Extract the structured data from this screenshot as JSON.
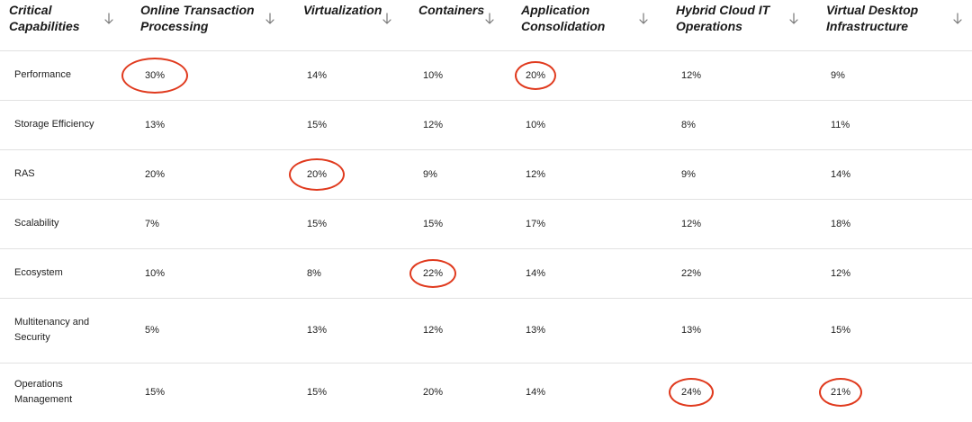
{
  "header": {
    "columns": [
      {
        "label": "Critical\nCapabilities"
      },
      {
        "label": "Online Transaction\nProcessing"
      },
      {
        "label": "Virtualization"
      },
      {
        "label": "Containers"
      },
      {
        "label": "Application\nConsolidation"
      },
      {
        "label": "Hybrid Cloud IT\nOperations"
      },
      {
        "label": "Virtual Desktop\nInfrastructure"
      }
    ]
  },
  "rows": [
    {
      "label": "Performance",
      "values": [
        "30%",
        "14%",
        "10%",
        "20%",
        "12%",
        "9%"
      ],
      "circled": [
        true,
        false,
        false,
        true,
        false,
        false
      ]
    },
    {
      "label": "Storage Efficiency",
      "values": [
        "13%",
        "15%",
        "12%",
        "10%",
        "8%",
        "11%"
      ],
      "circled": [
        false,
        false,
        false,
        false,
        false,
        false
      ]
    },
    {
      "label": "RAS",
      "values": [
        "20%",
        "20%",
        "9%",
        "12%",
        "9%",
        "14%"
      ],
      "circled": [
        false,
        true,
        false,
        false,
        false,
        false
      ]
    },
    {
      "label": "Scalability",
      "values": [
        "7%",
        "15%",
        "15%",
        "17%",
        "12%",
        "18%"
      ],
      "circled": [
        false,
        false,
        false,
        false,
        false,
        false
      ]
    },
    {
      "label": "Ecosystem",
      "values": [
        "10%",
        "8%",
        "22%",
        "14%",
        "22%",
        "12%"
      ],
      "circled": [
        false,
        false,
        true,
        false,
        false,
        false
      ]
    },
    {
      "label": "Multitenancy and\nSecurity",
      "values": [
        "5%",
        "13%",
        "12%",
        "13%",
        "13%",
        "15%"
      ],
      "circled": [
        false,
        false,
        false,
        false,
        false,
        false
      ]
    },
    {
      "label": "Operations\nManagement",
      "values": [
        "15%",
        "15%",
        "20%",
        "14%",
        "24%",
        "21%"
      ],
      "circled": [
        false,
        false,
        false,
        false,
        true,
        true
      ]
    }
  ],
  "colors": {
    "highlight": "#e03a1e",
    "text": "#222222",
    "divider": "#e1e1e1",
    "icon": "#777777"
  },
  "icons": {
    "sort": "arrow-down-icon"
  }
}
